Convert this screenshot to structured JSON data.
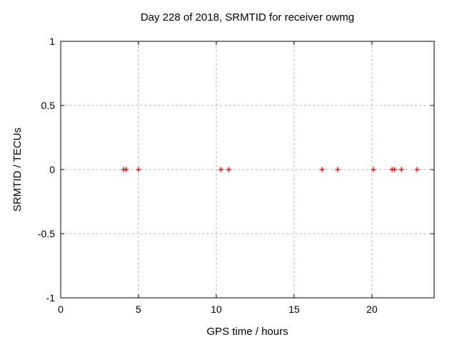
{
  "figure": {
    "title": "Day 228 of 2018, SRMTID for receiver owmg",
    "xlabel": "GPS time / hours",
    "ylabel": "SRMTID / TECUs"
  },
  "chart_data": {
    "type": "scatter",
    "title": "Day 228 of 2018, SRMTID for receiver owmg",
    "xlabel": "GPS time / hours",
    "ylabel": "SRMTID / TECUs",
    "xlim": [
      0,
      24
    ],
    "ylim": [
      -1,
      1
    ],
    "xticks": [
      0,
      5,
      10,
      15,
      20
    ],
    "yticks": [
      -1,
      -0.5,
      0,
      0.5,
      1
    ],
    "grid": true,
    "legend_position": "none",
    "marker": "plus",
    "colors": {
      "marker": "#ff0000",
      "grid": "#b3b3b3",
      "axis": "#000000",
      "background": "#ffffff",
      "text": "#000000"
    },
    "series": [
      {
        "name": "SRMTID",
        "x": [
          4.05,
          4.2,
          5.0,
          10.3,
          10.8,
          16.8,
          17.8,
          20.1,
          21.3,
          21.45,
          21.9,
          22.9
        ],
        "y": [
          0,
          0,
          0,
          0,
          0,
          0,
          0,
          0,
          0,
          0,
          0,
          0
        ]
      }
    ]
  }
}
